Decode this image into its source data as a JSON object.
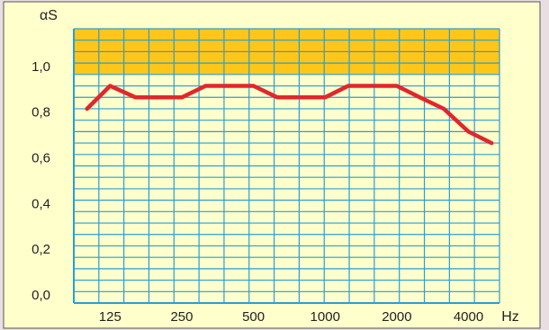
{
  "colors": {
    "background": "#e9dfe3",
    "panel": "#ffffcc",
    "panel_border": "#555555",
    "grid": "#2a9ed1",
    "band": "#ffc61a",
    "line": "#e3262b"
  },
  "chart_data": {
    "type": "line",
    "ylabel": "αS",
    "xlabel": "Hz",
    "ylim": [
      0.0,
      1.2
    ],
    "yticks": [
      "0,0",
      "0,2",
      "0,4",
      "0,6",
      "0,8",
      "1,0"
    ],
    "ytick_values": [
      0.0,
      0.2,
      0.4,
      0.6,
      0.8,
      1.0
    ],
    "xtick_labels": [
      "125",
      "250",
      "500",
      "1000",
      "2000",
      "4000"
    ],
    "xtick_freqs": [
      125,
      250,
      500,
      1000,
      2000,
      4000
    ],
    "xlim": [
      88,
      5400
    ],
    "x_scale": "log",
    "grid": true,
    "shaded_band": {
      "from": 1.0,
      "to": 1.2
    },
    "series": [
      {
        "x": [
          100,
          125,
          160,
          200,
          250,
          315,
          400,
          500,
          630,
          800,
          1000,
          1250,
          1600,
          2000,
          2500,
          3150,
          4000,
          5000
        ],
        "values": [
          0.85,
          0.95,
          0.9,
          0.9,
          0.9,
          0.95,
          0.95,
          0.95,
          0.9,
          0.9,
          0.9,
          0.95,
          0.95,
          0.95,
          0.9,
          0.85,
          0.75,
          0.7
        ]
      }
    ]
  }
}
